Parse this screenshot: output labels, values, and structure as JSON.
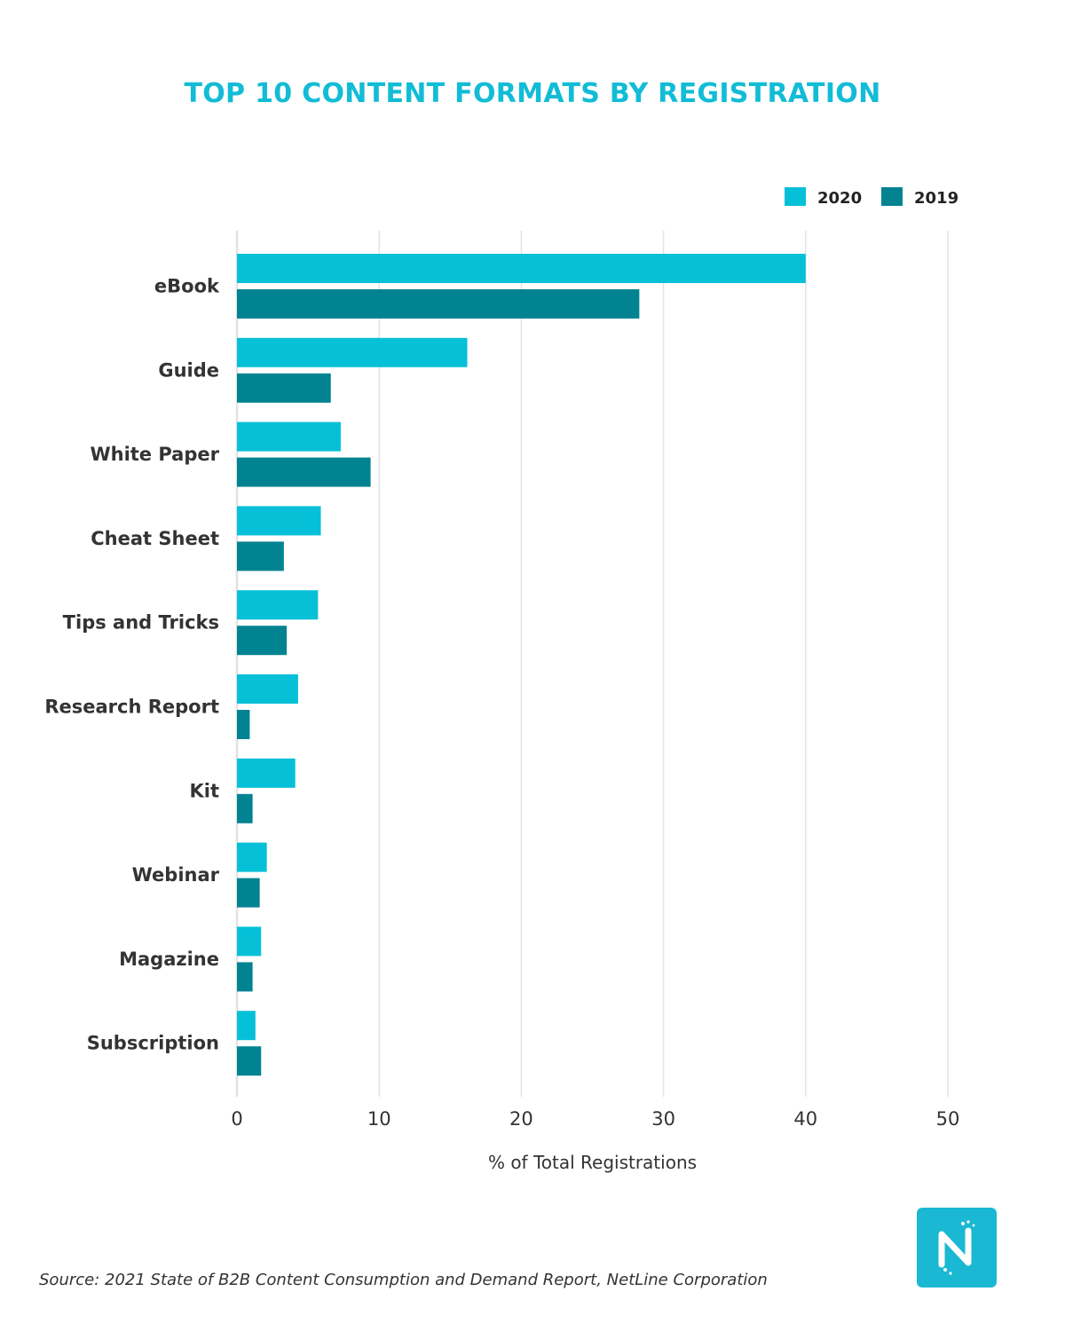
{
  "colors": {
    "series_2020": "#06c0d8",
    "series_2019": "#028391",
    "title": "#12bcd6",
    "grid": "#e3e3e3",
    "logo_bg": "#1ab8d2"
  },
  "chart_data": {
    "type": "bar",
    "orientation": "horizontal",
    "title": "TOP 10 CONTENT FORMATS BY REGISTRATION",
    "categories": [
      "eBook",
      "Guide",
      "White Paper",
      "Cheat Sheet",
      "Tips and Tricks",
      "Research Report",
      "Kit",
      "Webinar",
      "Magazine",
      "Subscription"
    ],
    "series": [
      {
        "name": "2020",
        "values": [
          40,
          16.2,
          7.3,
          5.9,
          5.7,
          4.3,
          4.1,
          2.1,
          1.7,
          1.3
        ]
      },
      {
        "name": "2019",
        "values": [
          28.3,
          6.6,
          9.4,
          3.3,
          3.5,
          0.9,
          1.1,
          1.6,
          1.1,
          1.7
        ]
      }
    ],
    "xlabel": "% of Total Registrations",
    "ylabel": "",
    "xlim": [
      0,
      50
    ],
    "xticks": [
      0,
      10,
      20,
      30,
      40,
      50
    ],
    "grid": true,
    "legend_position": "top-right"
  },
  "source": "Source: 2021 State of B2B Content Consumption and Demand Report, NetLine Corporation",
  "logo": {
    "icon": "netline-logo-icon"
  }
}
